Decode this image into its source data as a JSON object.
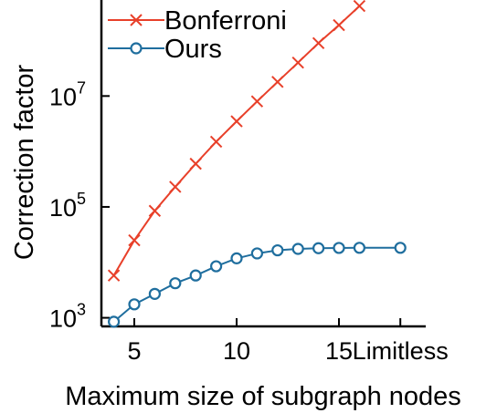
{
  "chart_data": {
    "type": "line",
    "xlabel": "Maximum size of subgraph nodes",
    "ylabel": "Correction factor",
    "y_scale": "log",
    "ylim": [
      700,
      500000000
    ],
    "x_ticks": [
      {
        "value": 5,
        "label": "5"
      },
      {
        "value": 10,
        "label": "10"
      },
      {
        "value": 15,
        "label": "15"
      },
      {
        "value": 18,
        "label": "Limitless"
      }
    ],
    "y_ticks": [
      {
        "value": 1000,
        "base": "10",
        "exp": "3"
      },
      {
        "value": 100000,
        "base": "10",
        "exp": "5"
      },
      {
        "value": 10000000,
        "base": "10",
        "exp": "7"
      }
    ],
    "legend_position": "top-left",
    "series": [
      {
        "name": "Bonferroni",
        "color": "#e8402a",
        "marker": "x",
        "x": [
          4,
          5,
          6,
          7,
          8,
          9,
          10,
          11,
          12,
          13,
          14,
          15,
          16
        ],
        "y": [
          5800,
          25000,
          85000,
          230000,
          600000,
          1500000,
          3500000,
          8000000,
          18000000,
          40000000,
          90000000,
          190000000,
          420000000
        ]
      },
      {
        "name": "Ours",
        "color": "#1f6e9e",
        "marker": "o",
        "x": [
          4,
          5,
          6,
          7,
          8,
          9,
          10,
          11,
          12,
          13,
          14,
          15,
          16,
          18
        ],
        "y": [
          850,
          1750,
          2700,
          4200,
          5800,
          8500,
          11800,
          14500,
          16500,
          17500,
          18000,
          18200,
          18300,
          18300
        ]
      }
    ]
  }
}
